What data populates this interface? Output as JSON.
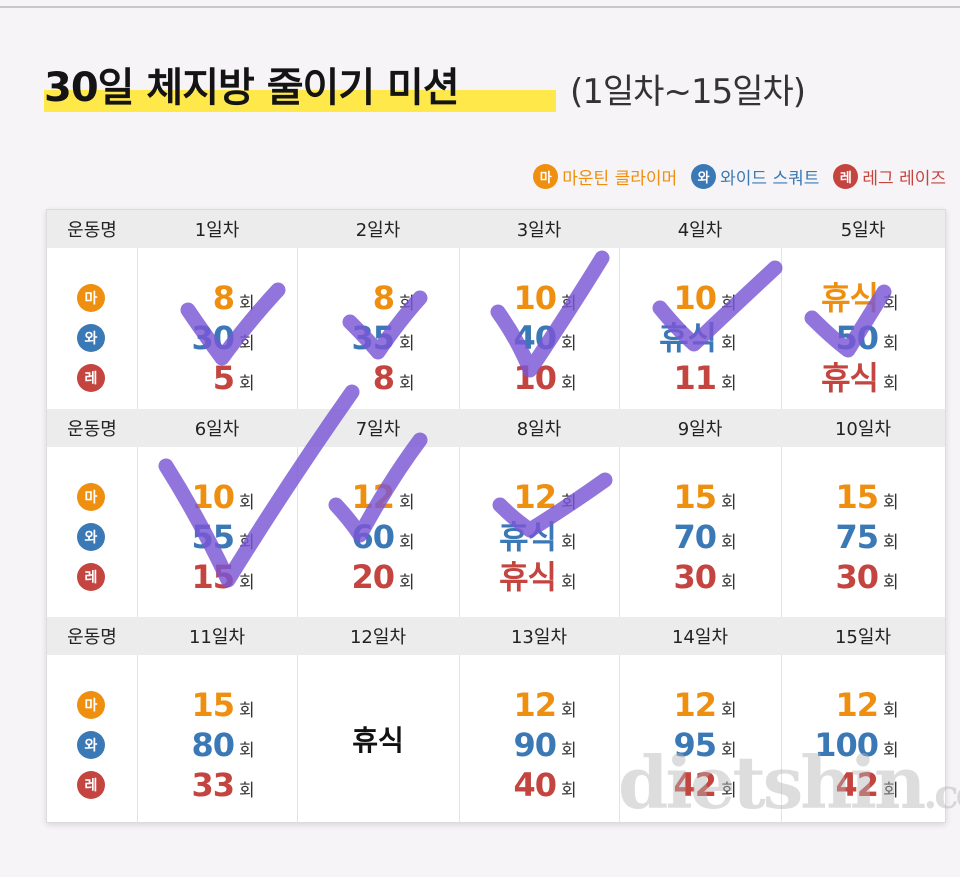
{
  "title": {
    "main": "30일 체지방 줄이기 미션",
    "sub": "(1일차~15일차)"
  },
  "legend": [
    {
      "badge": "마",
      "label": "마운틴 클라이머",
      "color": "#ee8f0f"
    },
    {
      "badge": "와",
      "label": "와이드 스쿼트",
      "color": "#3b78b6"
    },
    {
      "badge": "레",
      "label": "레그 레이즈",
      "color": "#c4443f"
    }
  ],
  "table": {
    "exercise_header": "운동명",
    "unit": "회",
    "badges": [
      "마",
      "와",
      "레"
    ],
    "blocks": [
      {
        "days": [
          {
            "label": "1일차",
            "values": [
              "8",
              "30",
              "5"
            ],
            "checked": true
          },
          {
            "label": "2일차",
            "values": [
              "8",
              "35",
              "8"
            ],
            "checked": true
          },
          {
            "label": "3일차",
            "values": [
              "10",
              "40",
              "10"
            ],
            "checked": true
          },
          {
            "label": "4일차",
            "values": [
              "10",
              "휴식",
              "11"
            ],
            "checked": true
          },
          {
            "label": "5일차",
            "values": [
              "휴식",
              "50",
              "휴식"
            ],
            "checked": true
          }
        ]
      },
      {
        "days": [
          {
            "label": "6일차",
            "values": [
              "10",
              "55",
              "15"
            ],
            "checked": true
          },
          {
            "label": "7일차",
            "values": [
              "12",
              "60",
              "20"
            ],
            "checked": true
          },
          {
            "label": "8일차",
            "values": [
              "12",
              "휴식",
              "휴식"
            ],
            "checked": true
          },
          {
            "label": "9일차",
            "values": [
              "15",
              "70",
              "30"
            ],
            "checked": false
          },
          {
            "label": "10일차",
            "values": [
              "15",
              "75",
              "30"
            ],
            "checked": false
          }
        ]
      },
      {
        "days": [
          {
            "label": "11일차",
            "values": [
              "15",
              "80",
              "33"
            ],
            "checked": false
          },
          {
            "label": "12일차",
            "rest": "휴식",
            "checked": false
          },
          {
            "label": "13일차",
            "values": [
              "12",
              "90",
              "40"
            ],
            "checked": false
          },
          {
            "label": "14일차",
            "values": [
              "12",
              "95",
              "42"
            ],
            "checked": false
          },
          {
            "label": "15일차",
            "values": [
              "12",
              "100",
              "42"
            ],
            "checked": false
          }
        ]
      }
    ]
  },
  "watermark": {
    "main": "dietshin",
    "suffix": ".com"
  },
  "colors": {
    "ma": "#ee8f0f",
    "wa": "#3b78b6",
    "re": "#c4443f",
    "check": "#7a55d6",
    "highlight": "#ffe94a"
  }
}
